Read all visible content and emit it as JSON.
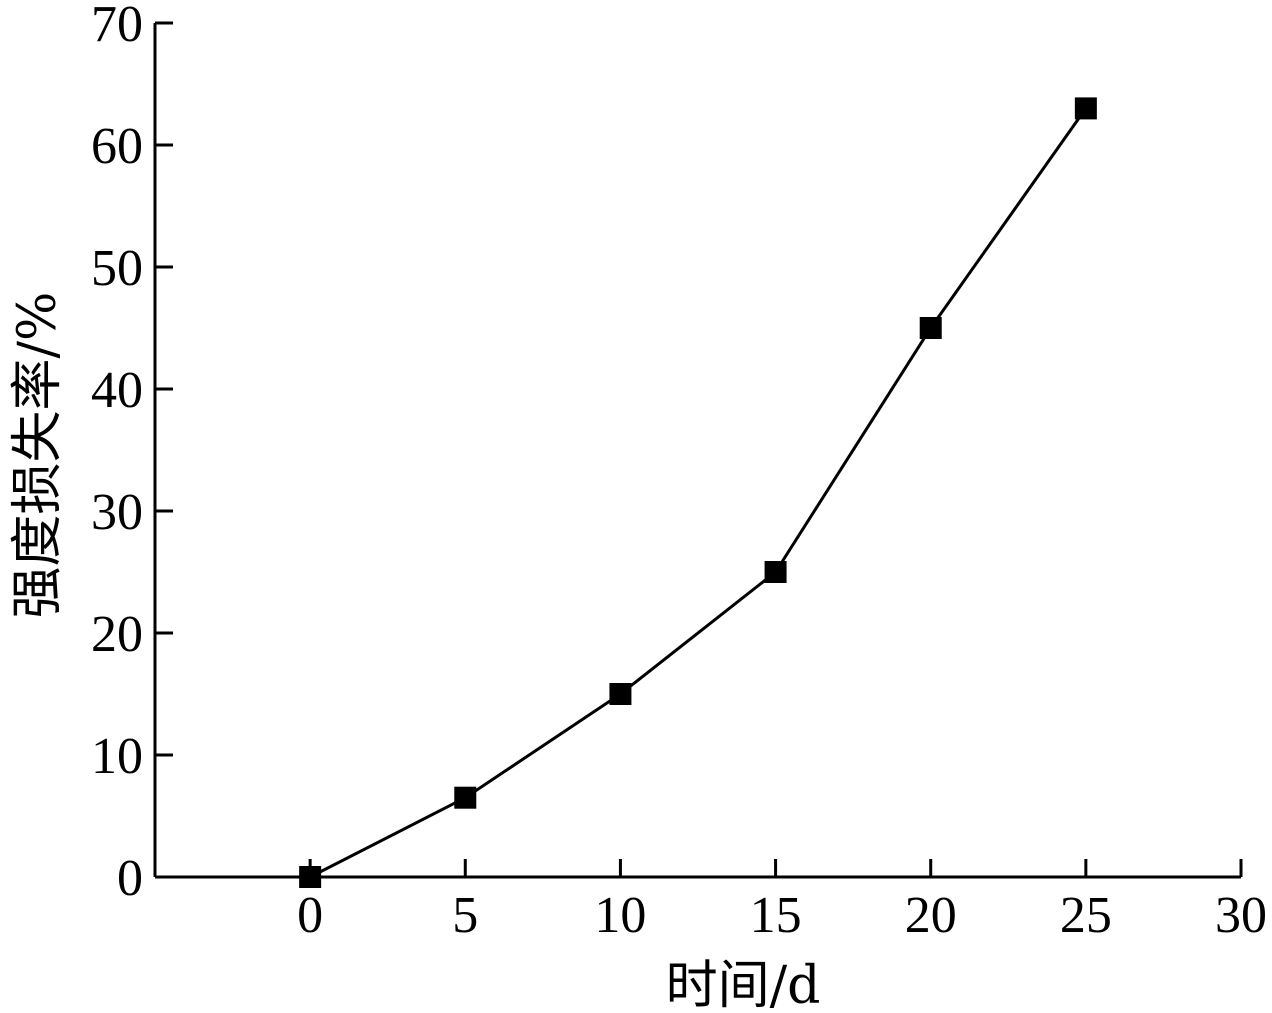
{
  "chart_data": {
    "type": "line",
    "title": "",
    "xlabel": "时间/d",
    "ylabel": "强度损失率/%",
    "xlim": [
      -5,
      30
    ],
    "ylim": [
      0,
      70
    ],
    "xticks": [
      0,
      5,
      10,
      15,
      20,
      25,
      30
    ],
    "yticks": [
      0,
      10,
      20,
      30,
      40,
      50,
      60,
      70
    ],
    "grid": false,
    "legend": "none",
    "series": [
      {
        "x": [
          0,
          5,
          10,
          15,
          20,
          25
        ],
        "y": [
          0,
          6.5,
          15,
          25,
          45,
          63
        ],
        "marker": "square",
        "color": "#000000"
      }
    ]
  }
}
